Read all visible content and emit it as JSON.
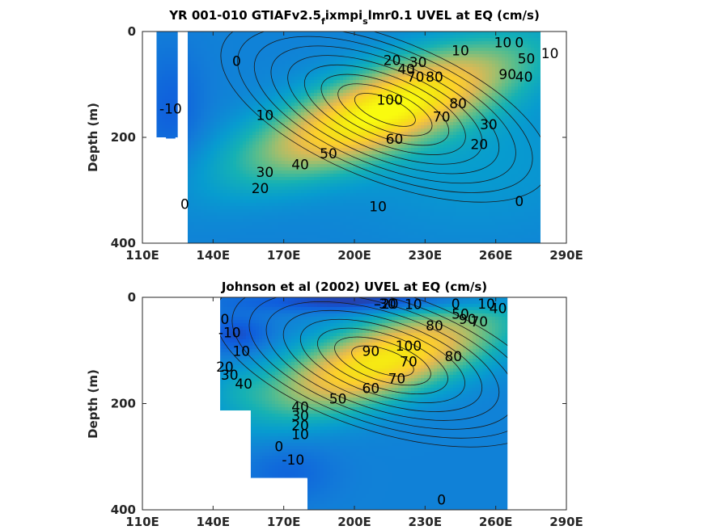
{
  "chart_data": [
    {
      "type": "heatmap",
      "subtype": "filled-contour",
      "title_main": "YR 001-010 GTIAFv2.5",
      "title_sub1": "f",
      "title_mid": "ixmpi",
      "title_sub2": "s",
      "title_end": "lmr0.1 UVEL at EQ (cm/s)",
      "ylabel": "Depth (m)",
      "xlim": [
        110,
        290
      ],
      "ylim": [
        0,
        400
      ],
      "y_reversed": true,
      "xticks": [
        110,
        140,
        170,
        200,
        230,
        260,
        290
      ],
      "xtick_labels": [
        "110E",
        "140E",
        "170E",
        "200E",
        "230E",
        "260E",
        "290E"
      ],
      "yticks": [
        0,
        200,
        400
      ],
      "ytick_labels": [
        "0",
        "200",
        "400"
      ],
      "colormap": "parula",
      "clim": [
        -30,
        110
      ],
      "data_extent_lon": [
        116,
        279
      ],
      "undercurrent": {
        "core_lon": 213,
        "core_depth": 148,
        "max_speed": 108
      },
      "contour_labels": [
        {
          "text": "10",
          "lon": 245,
          "depth": 45
        },
        {
          "text": "-10",
          "lon": 122,
          "depth": 155
        },
        {
          "text": "0",
          "lon": 150,
          "depth": 65
        },
        {
          "text": "10",
          "lon": 283,
          "depth": 50
        },
        {
          "text": "0",
          "lon": 270,
          "depth": 30
        },
        {
          "text": "50",
          "lon": 273,
          "depth": 60
        },
        {
          "text": "10",
          "lon": 263,
          "depth": 30
        },
        {
          "text": "20",
          "lon": 216,
          "depth": 63
        },
        {
          "text": "30",
          "lon": 227,
          "depth": 67
        },
        {
          "text": "40",
          "lon": 222,
          "depth": 80
        },
        {
          "text": "70",
          "lon": 226,
          "depth": 95
        },
        {
          "text": "80",
          "lon": 234,
          "depth": 95
        },
        {
          "text": "90",
          "lon": 265,
          "depth": 90
        },
        {
          "text": "40",
          "lon": 272,
          "depth": 95
        },
        {
          "text": "100",
          "lon": 215,
          "depth": 138
        },
        {
          "text": "80",
          "lon": 244,
          "depth": 145
        },
        {
          "text": "70",
          "lon": 237,
          "depth": 170
        },
        {
          "text": "60",
          "lon": 217,
          "depth": 212
        },
        {
          "text": "30",
          "lon": 257,
          "depth": 185
        },
        {
          "text": "20",
          "lon": 253,
          "depth": 222
        },
        {
          "text": "10",
          "lon": 162,
          "depth": 167
        },
        {
          "text": "50",
          "lon": 189,
          "depth": 240
        },
        {
          "text": "40",
          "lon": 177,
          "depth": 260
        },
        {
          "text": "30",
          "lon": 162,
          "depth": 275
        },
        {
          "text": "20",
          "lon": 160,
          "depth": 305
        },
        {
          "text": "0",
          "lon": 128,
          "depth": 335
        },
        {
          "text": "10",
          "lon": 210,
          "depth": 340
        },
        {
          "text": "0",
          "lon": 270,
          "depth": 330
        }
      ]
    },
    {
      "type": "heatmap",
      "subtype": "filled-contour",
      "title": "Johnson et al (2002) UVEL at EQ (cm/s)",
      "ylabel": "Depth (m)",
      "xlim": [
        110,
        290
      ],
      "ylim": [
        0,
        400
      ],
      "y_reversed": true,
      "xticks": [
        110,
        140,
        170,
        200,
        230,
        260,
        290
      ],
      "xtick_labels": [
        "110E",
        "140E",
        "170E",
        "200E",
        "230E",
        "260E",
        "290E"
      ],
      "yticks": [
        0,
        200,
        400
      ],
      "ytick_labels": [
        "0",
        "200",
        "400"
      ],
      "colormap": "parula",
      "clim": [
        -30,
        110
      ],
      "data_extent_lon": [
        143,
        265
      ],
      "undercurrent": {
        "core_lon": 212,
        "core_depth": 120,
        "max_speed": 100
      },
      "contour_labels": [
        {
          "text": "-30",
          "lon": 213,
          "depth": 5
        },
        {
          "text": "-20",
          "lon": 214,
          "depth": 20
        },
        {
          "text": "10",
          "lon": 225,
          "depth": 22
        },
        {
          "text": "0",
          "lon": 243,
          "depth": 15
        },
        {
          "text": "10",
          "lon": 256,
          "depth": 18
        },
        {
          "text": "40",
          "lon": 261,
          "depth": 30
        },
        {
          "text": "50",
          "lon": 245,
          "depth": 40
        },
        {
          "text": "90",
          "lon": 248,
          "depth": 50
        },
        {
          "text": "70",
          "lon": 253,
          "depth": 55
        },
        {
          "text": "80",
          "lon": 234,
          "depth": 62
        },
        {
          "text": "0",
          "lon": 145,
          "depth": 50
        },
        {
          "text": "-10",
          "lon": 147,
          "depth": 75
        },
        {
          "text": "10",
          "lon": 152,
          "depth": 110
        },
        {
          "text": "20",
          "lon": 145,
          "depth": 140
        },
        {
          "text": "30",
          "lon": 147,
          "depth": 155
        },
        {
          "text": "40",
          "lon": 153,
          "depth": 172
        },
        {
          "text": "90",
          "lon": 207,
          "depth": 110
        },
        {
          "text": "100",
          "lon": 223,
          "depth": 100
        },
        {
          "text": "70",
          "lon": 223,
          "depth": 130
        },
        {
          "text": "80",
          "lon": 242,
          "depth": 120
        },
        {
          "text": "60",
          "lon": 207,
          "depth": 180
        },
        {
          "text": "70",
          "lon": 218,
          "depth": 162
        },
        {
          "text": "50",
          "lon": 193,
          "depth": 200
        },
        {
          "text": "40",
          "lon": 177,
          "depth": 215
        },
        {
          "text": "30",
          "lon": 177,
          "depth": 232
        },
        {
          "text": "20",
          "lon": 177,
          "depth": 250
        },
        {
          "text": "10",
          "lon": 177,
          "depth": 267
        },
        {
          "text": "0",
          "lon": 168,
          "depth": 290
        },
        {
          "text": "-10",
          "lon": 174,
          "depth": 315
        },
        {
          "text": "0",
          "lon": 237,
          "depth": 390
        }
      ]
    }
  ]
}
